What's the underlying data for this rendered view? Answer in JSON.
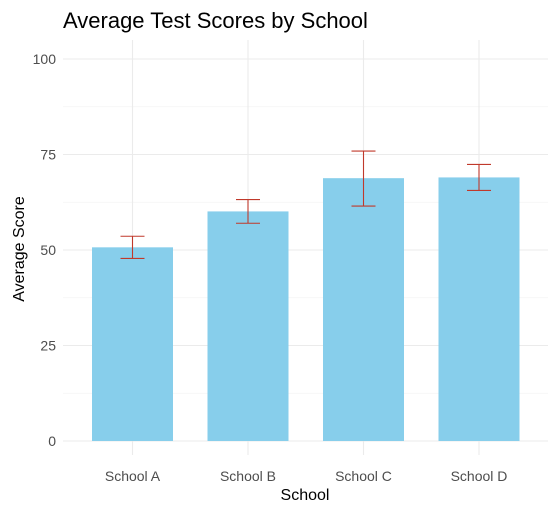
{
  "chart_data": {
    "type": "bar",
    "title": "Average Test Scores by School",
    "xlabel": "School",
    "ylabel": "Average Score",
    "categories": [
      "School A",
      "School B",
      "School C",
      "School D"
    ],
    "values": [
      50.7,
      60.1,
      68.8,
      69.0
    ],
    "error_low": [
      47.8,
      57.0,
      61.5,
      65.6
    ],
    "error_high": [
      53.6,
      63.2,
      75.9,
      72.4
    ],
    "ylim": [
      0,
      100
    ],
    "yticks": [
      0,
      25,
      50,
      75,
      100
    ],
    "grid": true,
    "legend": "none",
    "colors": {
      "bar": "#87CEEB",
      "error_bar": "#C0392B"
    }
  }
}
